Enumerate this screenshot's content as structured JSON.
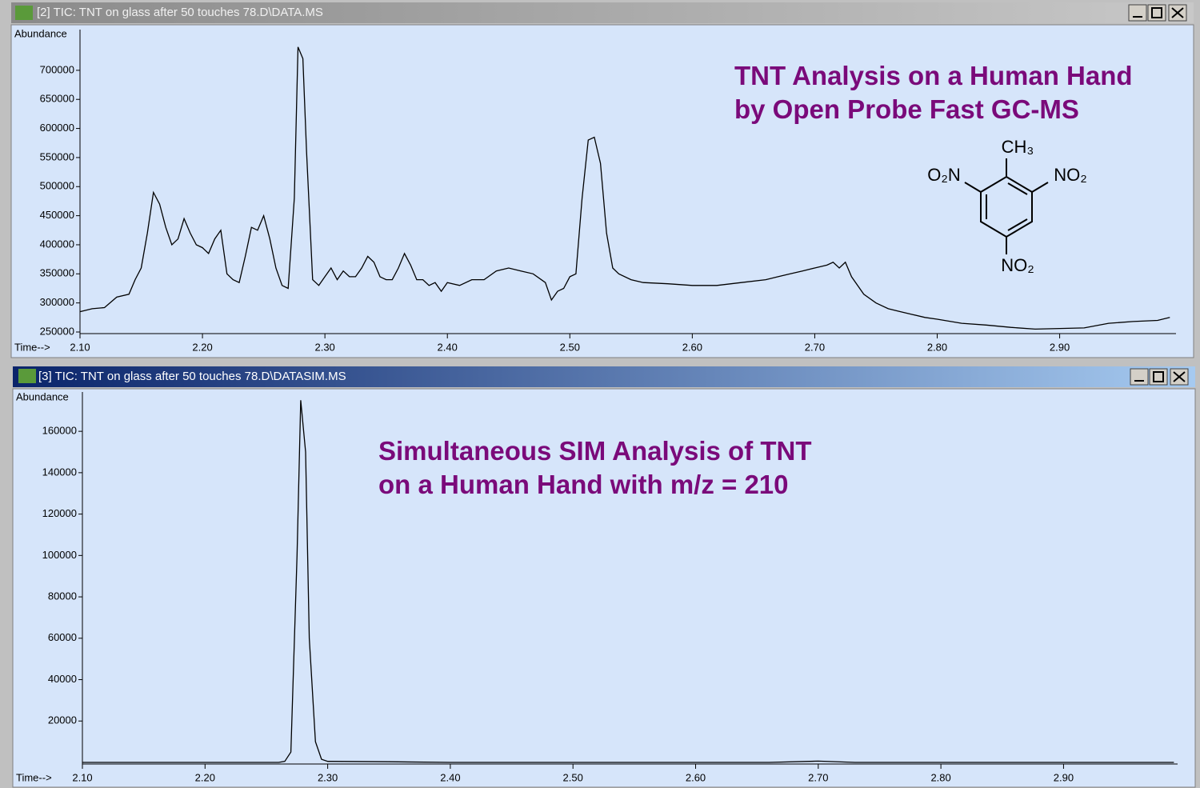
{
  "chart_data": [
    {
      "type": "line",
      "window_title": "[2] TIC: TNT on glass after 50 touches 78.D\\DATA.MS",
      "y_label": "Abundance",
      "x_label": "Time-->",
      "annotations": [
        "TNT Analysis on a Human Hand",
        "by Open Probe Fast GC-MS"
      ],
      "structure_labels": [
        "CH₃",
        "O₂N",
        "NO₂",
        "NO₂"
      ],
      "color": "#000000",
      "x": [
        2.1,
        2.11,
        2.12,
        2.13,
        2.14,
        2.145,
        2.15,
        2.155,
        2.16,
        2.165,
        2.17,
        2.175,
        2.18,
        2.185,
        2.19,
        2.195,
        2.2,
        2.205,
        2.21,
        2.215,
        2.22,
        2.225,
        2.23,
        2.235,
        2.24,
        2.245,
        2.25,
        2.255,
        2.26,
        2.265,
        2.27,
        2.275,
        2.278,
        2.282,
        2.285,
        2.29,
        2.295,
        2.3,
        2.305,
        2.31,
        2.315,
        2.32,
        2.325,
        2.33,
        2.335,
        2.34,
        2.345,
        2.35,
        2.355,
        2.36,
        2.365,
        2.37,
        2.375,
        2.38,
        2.385,
        2.39,
        2.395,
        2.4,
        2.41,
        2.42,
        2.43,
        2.44,
        2.45,
        2.46,
        2.47,
        2.48,
        2.485,
        2.49,
        2.495,
        2.5,
        2.505,
        2.51,
        2.515,
        2.52,
        2.525,
        2.53,
        2.535,
        2.54,
        2.55,
        2.56,
        2.58,
        2.6,
        2.62,
        2.64,
        2.66,
        2.67,
        2.68,
        2.69,
        2.7,
        2.71,
        2.715,
        2.72,
        2.725,
        2.73,
        2.74,
        2.75,
        2.76,
        2.77,
        2.78,
        2.79,
        2.8,
        2.82,
        2.84,
        2.86,
        2.88,
        2.9,
        2.92,
        2.94,
        2.96,
        2.98,
        2.99
      ],
      "values": [
        285000,
        290000,
        292000,
        310000,
        315000,
        340000,
        360000,
        420000,
        490000,
        470000,
        430000,
        400000,
        410000,
        445000,
        420000,
        400000,
        395000,
        385000,
        410000,
        425000,
        350000,
        340000,
        335000,
        380000,
        430000,
        425000,
        450000,
        410000,
        360000,
        330000,
        325000,
        480000,
        740000,
        720000,
        560000,
        340000,
        330000,
        345000,
        360000,
        340000,
        355000,
        345000,
        345000,
        360000,
        380000,
        370000,
        345000,
        340000,
        340000,
        360000,
        385000,
        365000,
        340000,
        340000,
        330000,
        335000,
        320000,
        335000,
        330000,
        340000,
        340000,
        355000,
        360000,
        355000,
        350000,
        335000,
        305000,
        320000,
        325000,
        345000,
        350000,
        480000,
        580000,
        585000,
        540000,
        420000,
        360000,
        350000,
        340000,
        335000,
        333000,
        330000,
        330000,
        335000,
        340000,
        345000,
        350000,
        355000,
        360000,
        365000,
        370000,
        360000,
        370000,
        345000,
        315000,
        300000,
        290000,
        285000,
        280000,
        275000,
        272000,
        265000,
        262000,
        258000,
        255000,
        256000,
        257000,
        265000,
        268000,
        270000,
        275000
      ],
      "xlim": [
        2.1,
        2.995
      ],
      "ylim": [
        250000,
        770000
      ],
      "xticks": [
        {
          "value": 2.1,
          "label": "2.10"
        },
        {
          "value": 2.2,
          "label": "2.20"
        },
        {
          "value": 2.3,
          "label": "2.30"
        },
        {
          "value": 2.4,
          "label": "2.40"
        },
        {
          "value": 2.5,
          "label": "2.50"
        },
        {
          "value": 2.6,
          "label": "2.60"
        },
        {
          "value": 2.7,
          "label": "2.70"
        },
        {
          "value": 2.8,
          "label": "2.80"
        },
        {
          "value": 2.9,
          "label": "2.90"
        }
      ],
      "yticks": [
        250000,
        300000,
        350000,
        400000,
        450000,
        500000,
        550000,
        600000,
        650000,
        700000
      ]
    },
    {
      "type": "line",
      "window_title": "[3] TIC: TNT on glass after 50 touches 78.D\\DATASIM.MS",
      "y_label": "Abundance",
      "x_label": "Time-->",
      "annotations": [
        "Simultaneous SIM Analysis of TNT",
        "on a Human Hand with m/z = 210"
      ],
      "color": "#000000",
      "x": [
        2.1,
        2.2,
        2.26,
        2.265,
        2.27,
        2.275,
        2.278,
        2.282,
        2.285,
        2.29,
        2.295,
        2.3,
        2.35,
        2.4,
        2.66,
        2.7,
        2.73,
        2.8,
        2.99
      ],
      "values": [
        0,
        0,
        0,
        500,
        5000,
        100000,
        175000,
        150000,
        60000,
        10000,
        1500,
        500,
        300,
        0,
        0,
        600,
        0,
        0,
        0
      ],
      "xlim": [
        2.1,
        2.993
      ],
      "ylim": [
        0,
        179000
      ],
      "xticks": [
        {
          "value": 2.1,
          "label": "2.10"
        },
        {
          "value": 2.2,
          "label": "2.20"
        },
        {
          "value": 2.3,
          "label": "2.30"
        },
        {
          "value": 2.4,
          "label": "2.40"
        },
        {
          "value": 2.5,
          "label": "2.50"
        },
        {
          "value": 2.6,
          "label": "2.60"
        },
        {
          "value": 2.7,
          "label": "2.70"
        },
        {
          "value": 2.8,
          "label": "2.80"
        },
        {
          "value": 2.9,
          "label": "2.90"
        }
      ],
      "yticks": [
        20000,
        40000,
        60000,
        80000,
        100000,
        120000,
        140000,
        160000
      ]
    }
  ]
}
